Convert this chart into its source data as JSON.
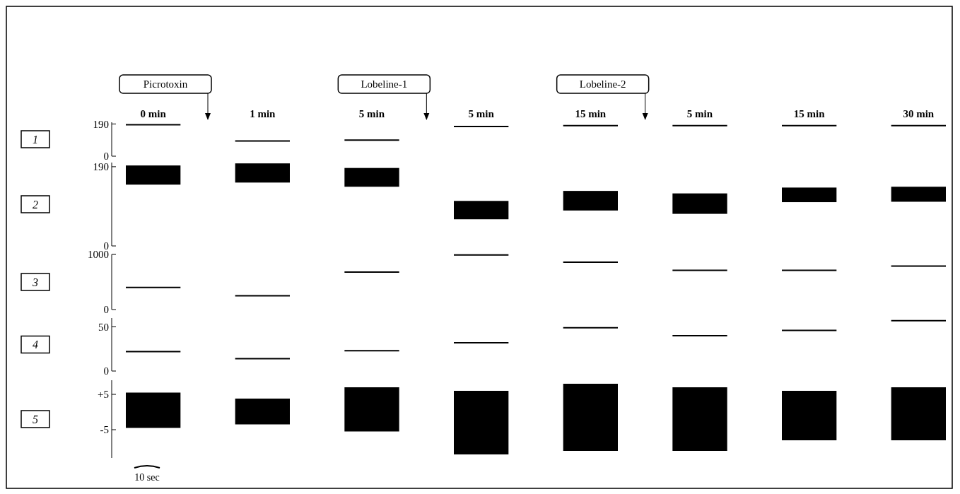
{
  "chart_data": [
    {
      "type": "line",
      "ylabel": "1",
      "categories": [
        null,
        "0 min",
        null,
        null,
        null,
        "1 min",
        null,
        null,
        null,
        "5 min",
        null,
        null,
        null,
        "5 min",
        null,
        null,
        null,
        "15 min",
        null,
        null,
        null,
        "5 min",
        null,
        null,
        null,
        "15 min",
        null,
        null,
        null,
        "30 min",
        null
      ],
      "ylim": [
        0,
        200
      ],
      "yticks": [
        0,
        190
      ],
      "series": [
        {
          "color": "#000000",
          "values": [
            185,
            185,
            185,
            null,
            90,
            90,
            90,
            null,
            95,
            95,
            95,
            null,
            175,
            175,
            175,
            null,
            180,
            180,
            180,
            null,
            180,
            180,
            180,
            null,
            180,
            180,
            180,
            null,
            180,
            180,
            180
          ]
        }
      ],
      "annotations": [
        "Picrotoxin",
        "Lobeline-1",
        "Lobeline-2"
      ]
    },
    {
      "type": "bar",
      "ylabel": "2",
      "ylim": [
        0,
        200
      ],
      "yticks": [
        0,
        190
      ],
      "tick_labels": "y",
      "series": [
        {
          "color": "#000000",
          "base": [
            147,
            152,
            142,
            64,
            85,
            77,
            105,
            106
          ],
          "values": [
            46,
            46,
            45,
            44,
            47,
            49,
            35,
            36
          ]
        }
      ]
    },
    {
      "type": "line",
      "ylabel": "3",
      "ylim": [
        0,
        1000
      ],
      "yticks": [
        0,
        1000
      ],
      "tick_labels": "y",
      "series": [
        {
          "color": "#000000",
          "values": [
            400,
            400,
            400,
            null,
            250,
            250,
            250,
            null,
            680,
            680,
            680,
            null,
            990,
            990,
            990,
            null,
            860,
            860,
            860,
            null,
            710,
            710,
            710,
            null,
            710,
            710,
            710,
            null,
            790,
            790,
            790
          ]
        }
      ]
    },
    {
      "type": "line",
      "ylabel": "4",
      "ylim": [
        0,
        60
      ],
      "yticks": [
        0,
        50
      ],
      "tick_labels": "y",
      "series": [
        {
          "color": "#000000",
          "values": [
            22,
            22,
            22,
            null,
            14,
            14,
            14,
            null,
            23,
            23,
            23,
            null,
            32,
            32,
            32,
            null,
            49,
            49,
            49,
            null,
            40,
            40,
            40,
            null,
            46,
            46,
            46,
            null,
            57,
            57,
            57
          ]
        }
      ]
    },
    {
      "type": "bar",
      "ylabel": "5",
      "ylim": [
        -13,
        9
      ],
      "yticks": [
        {
          "value": -5,
          "label": "-5"
        },
        {
          "value": 5,
          "label": "+5"
        }
      ],
      "tick_labels": "y",
      "series": [
        {
          "color": "#000000",
          "base": [
            -4.5,
            -3.5,
            -5.5,
            -12,
            -11,
            -11,
            -8,
            -8
          ],
          "values": [
            10,
            7.3,
            12.5,
            18,
            19,
            18,
            14,
            15
          ]
        }
      ],
      "annotations": [
        "10 sec"
      ]
    }
  ]
}
